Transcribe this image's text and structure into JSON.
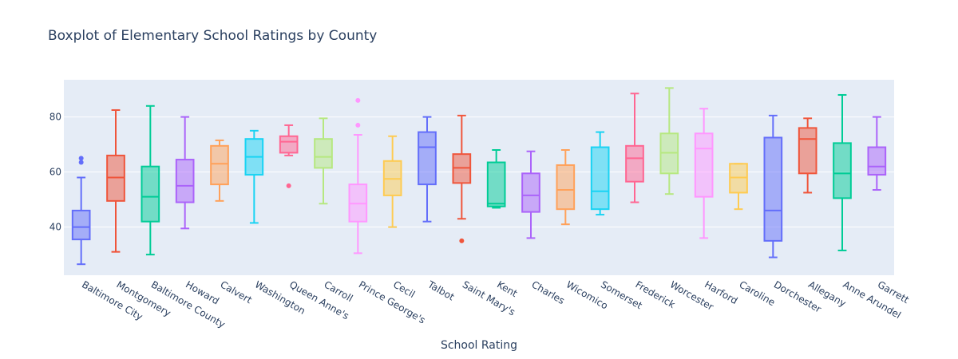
{
  "chart_data": {
    "type": "box",
    "title": "Boxplot of Elementary School Ratings by County",
    "xlabel": "School Rating",
    "ylabel": "",
    "ylim": [
      22.5,
      93.5
    ],
    "yticks": [
      40,
      60,
      80
    ],
    "grid": true,
    "legend": "none",
    "series": [
      {
        "name": "Baltimore City",
        "color": "#636efa",
        "min": 26.5,
        "q1": 35.5,
        "median": 40.0,
        "q3": 46.0,
        "max": 58.0,
        "outliers": [
          63.5,
          65.0
        ]
      },
      {
        "name": "Montgomery",
        "color": "#ef553b",
        "min": 31.0,
        "q1": 49.5,
        "median": 58.0,
        "q3": 66.0,
        "max": 82.5,
        "outliers": []
      },
      {
        "name": "Baltimore County",
        "color": "#00cc96",
        "min": 30.0,
        "q1": 42.0,
        "median": 51.0,
        "q3": 62.0,
        "max": 84.0,
        "outliers": []
      },
      {
        "name": "Howard",
        "color": "#ab63fa",
        "min": 39.5,
        "q1": 49.0,
        "median": 55.0,
        "q3": 64.5,
        "max": 80.0,
        "outliers": []
      },
      {
        "name": "Calvert",
        "color": "#ffa15a",
        "min": 49.5,
        "q1": 55.5,
        "median": 63.0,
        "q3": 69.5,
        "max": 71.5,
        "outliers": []
      },
      {
        "name": "Washington",
        "color": "#19d3f3",
        "min": 41.5,
        "q1": 59.0,
        "median": 65.5,
        "q3": 72.0,
        "max": 75.0,
        "outliers": []
      },
      {
        "name": "Queen Anne's",
        "color": "#ff6692",
        "min": 66.0,
        "q1": 67.0,
        "median": 71.0,
        "q3": 73.0,
        "max": 77.0,
        "outliers": [
          55.0
        ]
      },
      {
        "name": "Carroll",
        "color": "#b6e880",
        "min": 48.5,
        "q1": 61.5,
        "median": 65.5,
        "q3": 72.0,
        "max": 79.5,
        "outliers": []
      },
      {
        "name": "Prince George's",
        "color": "#ff97ff",
        "min": 30.5,
        "q1": 42.0,
        "median": 48.5,
        "q3": 55.5,
        "max": 73.5,
        "outliers": [
          77.0,
          86.0
        ]
      },
      {
        "name": "Cecil",
        "color": "#fecb52",
        "min": 40.0,
        "q1": 51.5,
        "median": 57.5,
        "q3": 64.0,
        "max": 73.0,
        "outliers": []
      },
      {
        "name": "Talbot",
        "color": "#636efa",
        "min": 42.0,
        "q1": 55.5,
        "median": 69.0,
        "q3": 74.5,
        "max": 80.0,
        "outliers": []
      },
      {
        "name": "Saint Mary's",
        "color": "#ef553b",
        "min": 43.0,
        "q1": 56.0,
        "median": 61.5,
        "q3": 66.5,
        "max": 80.5,
        "outliers": [
          35.0
        ]
      },
      {
        "name": "Kent",
        "color": "#00cc96",
        "min": 47.0,
        "q1": 47.5,
        "median": 48.5,
        "q3": 63.5,
        "max": 68.0,
        "outliers": []
      },
      {
        "name": "Charles",
        "color": "#ab63fa",
        "min": 36.0,
        "q1": 45.5,
        "median": 51.5,
        "q3": 59.5,
        "max": 67.5,
        "outliers": []
      },
      {
        "name": "Wicomico",
        "color": "#ffa15a",
        "min": 41.0,
        "q1": 46.5,
        "median": 53.5,
        "q3": 62.5,
        "max": 68.0,
        "outliers": []
      },
      {
        "name": "Somerset",
        "color": "#19d3f3",
        "min": 44.5,
        "q1": 46.5,
        "median": 53.0,
        "q3": 69.0,
        "max": 74.5,
        "outliers": []
      },
      {
        "name": "Frederick",
        "color": "#ff6692",
        "min": 49.0,
        "q1": 56.5,
        "median": 65.0,
        "q3": 69.5,
        "max": 88.5,
        "outliers": []
      },
      {
        "name": "Worcester",
        "color": "#b6e880",
        "min": 52.0,
        "q1": 59.5,
        "median": 67.0,
        "q3": 74.0,
        "max": 90.5,
        "outliers": []
      },
      {
        "name": "Harford",
        "color": "#ff97ff",
        "min": 36.0,
        "q1": 51.0,
        "median": 68.5,
        "q3": 74.0,
        "max": 83.0,
        "outliers": []
      },
      {
        "name": "Caroline",
        "color": "#fecb52",
        "min": 46.5,
        "q1": 52.5,
        "median": 58.0,
        "q3": 63.0,
        "max": 63.0,
        "outliers": []
      },
      {
        "name": "Dorchester",
        "color": "#636efa",
        "min": 29.0,
        "q1": 35.0,
        "median": 46.0,
        "q3": 72.5,
        "max": 80.5,
        "outliers": []
      },
      {
        "name": "Allegany",
        "color": "#ef553b",
        "min": 52.5,
        "q1": 59.5,
        "median": 72.0,
        "q3": 76.0,
        "max": 79.5,
        "outliers": []
      },
      {
        "name": "Anne Arundel",
        "color": "#00cc96",
        "min": 31.5,
        "q1": 50.5,
        "median": 59.5,
        "q3": 70.5,
        "max": 88.0,
        "outliers": []
      },
      {
        "name": "Garrett",
        "color": "#ab63fa",
        "min": 53.5,
        "q1": 59.0,
        "median": 62.0,
        "q3": 69.0,
        "max": 80.0,
        "outliers": []
      }
    ]
  }
}
